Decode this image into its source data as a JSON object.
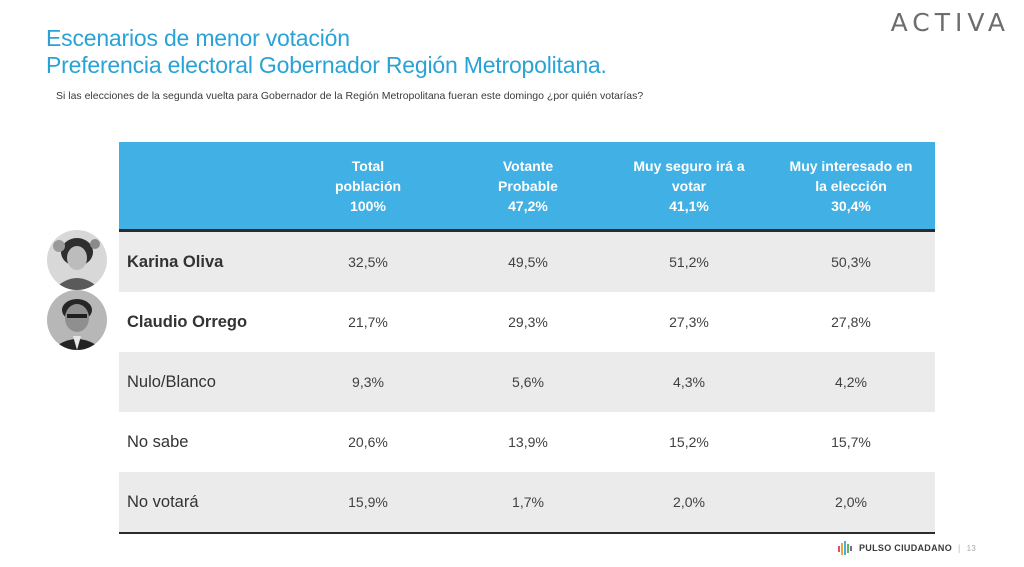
{
  "header": {
    "title_line1": "Escenarios de menor votación",
    "title_line2": "Preferencia electoral Gobernador Región Metropolitana.",
    "brand": "ACTIVA"
  },
  "question": "Si las elecciones de la segunda vuelta para Gobernador de  la Región Metropolitana  fueran este domingo ¿por quién votarías?",
  "table": {
    "columns": [
      {
        "line1": "Total",
        "line2": "población",
        "line3": "100%"
      },
      {
        "line1": "Votante",
        "line2": "Probable",
        "line3": "47,2%"
      },
      {
        "line1": "Muy seguro irá a",
        "line2": "votar",
        "line3": "41,1%"
      },
      {
        "line1": "Muy interesado en",
        "line2": "la elección",
        "line3": "30,4%"
      }
    ],
    "rows": [
      {
        "label": "Karina Oliva",
        "values": [
          "32,5%",
          "49,5%",
          "51,2%",
          "50,3%"
        ]
      },
      {
        "label": "Claudio Orrego",
        "values": [
          "21,7%",
          "29,3%",
          "27,3%",
          "27,8%"
        ]
      },
      {
        "label": "Nulo/Blanco",
        "values": [
          "9,3%",
          "5,6%",
          "4,3%",
          "4,2%"
        ]
      },
      {
        "label": "No sabe",
        "values": [
          "20,6%",
          "13,9%",
          "15,2%",
          "15,7%"
        ]
      },
      {
        "label": "No votará",
        "values": [
          "15,9%",
          "1,7%",
          "2,0%",
          "2,0%"
        ]
      }
    ]
  },
  "footer": {
    "logo_text": "PULSO CIUDADANO",
    "separator": "|",
    "page_number": "13"
  },
  "colors": {
    "accent": "#29a3d6",
    "header_bg": "#41b0e5",
    "row_shade": "#ebebeb"
  }
}
